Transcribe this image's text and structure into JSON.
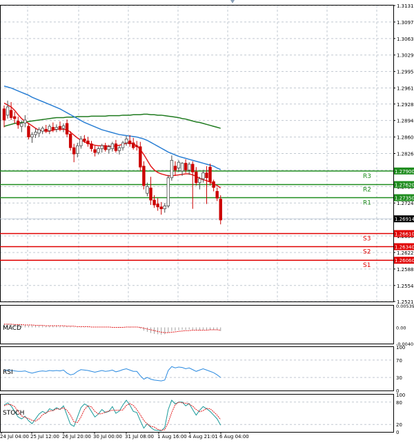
{
  "colors": {
    "grid": "#c0c8d0",
    "bull": "#4a4a4a",
    "bear": "#cc0000",
    "ma_fast": "#e31a1c",
    "ma_mid": "#2a7fd4",
    "ma_slow": "#1e7a1e",
    "resistance": "#1e8c1e",
    "support": "#e00000",
    "macd_signal": "#e31a1c",
    "rsi_line": "#2a8ae0",
    "stoch_main": "#1a9a9a",
    "stoch_signal": "#e31a1c"
  },
  "chart_data": [
    {
      "type": "candlestick",
      "price_axis_ticks": [
        "1.31310",
        "1.30970",
        "1.30630",
        "1.30290",
        "1.29950",
        "1.29610",
        "1.29280",
        "1.28940",
        "1.28600",
        "1.28260",
        "1.27920",
        "1.27580",
        "1.27240",
        "1.26900",
        "1.26560",
        "1.26220",
        "1.25880",
        "1.25540",
        "1.25210"
      ],
      "ylim": [
        1.2521,
        1.3131
      ],
      "time_axis_labels": [
        "24 Jul 04:00",
        "25 Jul 12:00",
        "26 Jul 20:00",
        "30 Jul 00:00",
        "31 Jul 08:00",
        "1 Aug 16:00",
        "4 Aug 21:01",
        "6 Aug 04:00"
      ],
      "candles": [
        [
          1.2918,
          1.2925,
          1.288,
          1.2895
        ],
        [
          1.2905,
          1.2935,
          1.2898,
          1.2922
        ],
        [
          1.2915,
          1.2932,
          1.2895,
          1.29
        ],
        [
          1.2902,
          1.2912,
          1.2888,
          1.2898
        ],
        [
          1.2893,
          1.2902,
          1.2877,
          1.2885
        ],
        [
          1.2882,
          1.2893,
          1.287,
          1.2888
        ],
        [
          1.2889,
          1.2905,
          1.288,
          1.2895
        ],
        [
          1.2882,
          1.2888,
          1.2855,
          1.286
        ],
        [
          1.286,
          1.287,
          1.2848,
          1.2865
        ],
        [
          1.2865,
          1.2878,
          1.2858,
          1.287
        ],
        [
          1.2868,
          1.288,
          1.286,
          1.2875
        ],
        [
          1.2872,
          1.2882,
          1.2866,
          1.2878
        ],
        [
          1.2876,
          1.2885,
          1.2868,
          1.2872
        ],
        [
          1.2873,
          1.2886,
          1.2866,
          1.2882
        ],
        [
          1.288,
          1.289,
          1.287,
          1.2875
        ],
        [
          1.2876,
          1.2886,
          1.287,
          1.288
        ],
        [
          1.2882,
          1.2892,
          1.2872,
          1.2876
        ],
        [
          1.2878,
          1.2888,
          1.287,
          1.2883
        ],
        [
          1.2888,
          1.2896,
          1.286,
          1.2866
        ],
        [
          1.2866,
          1.2872,
          1.2832,
          1.2838
        ],
        [
          1.2838,
          1.2846,
          1.2808,
          1.2825
        ],
        [
          1.2826,
          1.2848,
          1.2818,
          1.2842
        ],
        [
          1.2842,
          1.2862,
          1.2836,
          1.2856
        ],
        [
          1.2856,
          1.2864,
          1.2848,
          1.2852
        ],
        [
          1.2852,
          1.286,
          1.284,
          1.2846
        ],
        [
          1.2846,
          1.2852,
          1.283,
          1.2836
        ],
        [
          1.2834,
          1.2842,
          1.282,
          1.2828
        ],
        [
          1.2828,
          1.284,
          1.2824,
          1.2836
        ],
        [
          1.2836,
          1.2846,
          1.2828,
          1.2842
        ],
        [
          1.2842,
          1.2848,
          1.283,
          1.2834
        ],
        [
          1.2834,
          1.2844,
          1.2826,
          1.284
        ],
        [
          1.2836,
          1.285,
          1.283,
          1.2846
        ],
        [
          1.2846,
          1.2854,
          1.2828,
          1.2832
        ],
        [
          1.2832,
          1.2842,
          1.2824,
          1.2838
        ],
        [
          1.2838,
          1.2852,
          1.2832,
          1.2848
        ],
        [
          1.2848,
          1.2862,
          1.2842,
          1.2856
        ],
        [
          1.2852,
          1.2864,
          1.284,
          1.2846
        ],
        [
          1.2848,
          1.2858,
          1.2834,
          1.2838
        ],
        [
          1.2842,
          1.2852,
          1.2832,
          1.284
        ],
        [
          1.284,
          1.285,
          1.279,
          1.2798
        ],
        [
          1.28,
          1.281,
          1.2752,
          1.276
        ],
        [
          1.2744,
          1.2766,
          1.2738,
          1.2758
        ],
        [
          1.2755,
          1.2778,
          1.272,
          1.273
        ],
        [
          1.273,
          1.274,
          1.2714,
          1.272
        ],
        [
          1.2722,
          1.2734,
          1.2708,
          1.2716
        ],
        [
          1.2716,
          1.2726,
          1.27,
          1.2712
        ],
        [
          1.2712,
          1.2724,
          1.2704,
          1.2718
        ],
        [
          1.2718,
          1.2782,
          1.2714,
          1.2776
        ],
        [
          1.2776,
          1.2822,
          1.277,
          1.2812
        ],
        [
          1.28,
          1.281,
          1.278,
          1.2792
        ],
        [
          1.2796,
          1.2812,
          1.2788,
          1.2808
        ],
        [
          1.279,
          1.2808,
          1.278,
          1.2806
        ],
        [
          1.2806,
          1.2814,
          1.2786,
          1.2792
        ],
        [
          1.2792,
          1.2808,
          1.2782,
          1.2804
        ],
        [
          1.2804,
          1.281,
          1.2712,
          1.2788
        ],
        [
          1.2788,
          1.2798,
          1.276,
          1.2766
        ],
        [
          1.2766,
          1.2778,
          1.2752,
          1.2774
        ],
        [
          1.2774,
          1.2792,
          1.2766,
          1.2786
        ],
        [
          1.2786,
          1.28,
          1.2722,
          1.2776
        ],
        [
          1.2798,
          1.2805,
          1.276,
          1.2768
        ],
        [
          1.2768,
          1.2772,
          1.2748,
          1.2756
        ],
        [
          1.2748,
          1.2756,
          1.2728,
          1.2734
        ],
        [
          1.2732,
          1.274,
          1.268,
          1.2689
        ]
      ],
      "ma_fast": [
        1.293,
        1.2926,
        1.2922,
        1.2915,
        1.2906,
        1.2898,
        1.2892,
        1.2888,
        1.2883,
        1.2878,
        1.2874,
        1.2873,
        1.2872,
        1.2872,
        1.2874,
        1.2876,
        1.2876,
        1.2876,
        1.2875,
        1.287,
        1.2864,
        1.2858,
        1.2854,
        1.285,
        1.2847,
        1.2845,
        1.2843,
        1.2842,
        1.2842,
        1.2842,
        1.2841,
        1.2841,
        1.2842,
        1.2843,
        1.2845,
        1.2847,
        1.2848,
        1.2846,
        1.2842,
        1.2834,
        1.2824,
        1.2812,
        1.28,
        1.2792,
        1.2787,
        1.2784,
        1.2782,
        1.278,
        1.278,
        1.2781,
        1.2782,
        1.2783,
        1.2784,
        1.2784,
        1.2782,
        1.2779,
        1.2775,
        1.2772,
        1.277,
        1.2767,
        1.2763,
        1.276,
        1.2755
      ],
      "ma_mid": [
        1.2965,
        1.2963,
        1.2961,
        1.2958,
        1.2955,
        1.2952,
        1.2949,
        1.2946,
        1.2942,
        1.2939,
        1.2936,
        1.2933,
        1.293,
        1.2927,
        1.2924,
        1.2921,
        1.2918,
        1.2914,
        1.291,
        1.2906,
        1.2902,
        1.2898,
        1.2894,
        1.289,
        1.2887,
        1.2884,
        1.2881,
        1.2878,
        1.2875,
        1.2873,
        1.2871,
        1.2869,
        1.2867,
        1.2865,
        1.2864,
        1.2863,
        1.2862,
        1.2861,
        1.286,
        1.2858,
        1.2856,
        1.2853,
        1.2849,
        1.2845,
        1.2841,
        1.2837,
        1.2833,
        1.2829,
        1.2826,
        1.2823,
        1.282,
        1.2818,
        1.2816,
        1.2814,
        1.2812,
        1.281,
        1.2808,
        1.2806,
        1.2804,
        1.2802,
        1.28,
        1.2796,
        1.2793
      ],
      "ma_slow": [
        1.2882,
        1.2884,
        1.2886,
        1.2888,
        1.2889,
        1.289,
        1.2891,
        1.2892,
        1.2893,
        1.2894,
        1.2895,
        1.2896,
        1.2897,
        1.2898,
        1.2899,
        1.29,
        1.29,
        1.29,
        1.2901,
        1.2901,
        1.2901,
        1.2902,
        1.2902,
        1.2902,
        1.2902,
        1.2903,
        1.2903,
        1.2903,
        1.2903,
        1.2903,
        1.2904,
        1.2904,
        1.2904,
        1.2904,
        1.2905,
        1.2905,
        1.2905,
        1.2906,
        1.2906,
        1.2906,
        1.2907,
        1.2907,
        1.2906,
        1.2906,
        1.2905,
        1.2905,
        1.2904,
        1.2903,
        1.2902,
        1.2901,
        1.29,
        1.2898,
        1.2897,
        1.2895,
        1.2893,
        1.2891,
        1.289,
        1.2888,
        1.2886,
        1.2884,
        1.2882,
        1.288,
        1.2878
      ],
      "levels": [
        {
          "name": "R3",
          "value": 1.279,
          "label": "1.27900",
          "kind": "resistance"
        },
        {
          "name": "R2",
          "value": 1.2762,
          "label": "1.27620",
          "kind": "resistance"
        },
        {
          "name": "R1",
          "value": 1.2735,
          "label": "1.27350",
          "kind": "resistance"
        },
        {
          "name": "S3",
          "value": 1.2661,
          "label": "1.26610",
          "kind": "support"
        },
        {
          "name": "S2",
          "value": 1.2634,
          "label": "1.26340",
          "kind": "support"
        },
        {
          "name": "S1",
          "value": 1.2606,
          "label": "1.26060",
          "kind": "support"
        }
      ],
      "current_price": {
        "value": 1.26914,
        "label": "1.26914"
      }
    },
    {
      "type": "histogram",
      "title": "MACD",
      "axis_ticks": [
        "0.005392",
        "0.00",
        "-0.004015"
      ],
      "ylim": [
        -0.004015,
        0.005392
      ],
      "histogram": [
        0.0009,
        0.0009,
        0.0008,
        0.0008,
        0.0007,
        0.0006,
        0.0006,
        0.0005,
        0.0005,
        0.0005,
        0.0004,
        0.0004,
        0.0004,
        0.0004,
        0.0004,
        0.0004,
        0.0003,
        0.0003,
        0.0003,
        0.0002,
        0.0001,
        0.0001,
        0.0001,
        0.0001,
        0.0001,
        0.0,
        0.0,
        0.0,
        0.0,
        0.0,
        0.0,
        0.0,
        0.0,
        0.0001,
        0.0001,
        0.0001,
        0.0001,
        0.0001,
        0.0,
        -0.0003,
        -0.0008,
        -0.0011,
        -0.0014,
        -0.0016,
        -0.0017,
        -0.0018,
        -0.0017,
        -0.0013,
        -0.0009,
        -0.0008,
        -0.0007,
        -0.0006,
        -0.0006,
        -0.0005,
        -0.0006,
        -0.0007,
        -0.0007,
        -0.0006,
        -0.0006,
        -0.0006,
        -0.0006,
        -0.0007,
        -0.0009
      ],
      "signal": [
        0.0008,
        0.0008,
        0.0008,
        0.0007,
        0.0007,
        0.0007,
        0.0006,
        0.0006,
        0.0006,
        0.0005,
        0.0005,
        0.0005,
        0.0004,
        0.0004,
        0.0004,
        0.0004,
        0.0004,
        0.0004,
        0.0003,
        0.0003,
        0.0003,
        0.0002,
        0.0002,
        0.0002,
        0.0002,
        0.0001,
        0.0001,
        0.0001,
        0.0001,
        0.0001,
        0.0001,
        0.0,
        0.0,
        0.0,
        0.0,
        0.0001,
        0.0001,
        0.0001,
        0.0001,
        0.0,
        -0.0002,
        -0.0004,
        -0.0006,
        -0.0008,
        -0.001,
        -0.0012,
        -0.0013,
        -0.0013,
        -0.0012,
        -0.0011,
        -0.001,
        -0.0009,
        -0.0008,
        -0.0008,
        -0.0007,
        -0.0007,
        -0.0007,
        -0.0007,
        -0.0007,
        -0.0006,
        -0.0006,
        -0.0006,
        -0.0007
      ]
    },
    {
      "type": "line",
      "title": "RSI",
      "axis_ticks": [
        "100",
        "70",
        "30",
        "0"
      ],
      "ylim": [
        0,
        100
      ],
      "values": [
        46,
        47,
        46,
        45,
        44,
        44,
        45,
        42,
        40,
        42,
        44,
        45,
        44,
        46,
        45,
        46,
        45,
        47,
        40,
        36,
        38,
        44,
        48,
        47,
        46,
        44,
        42,
        44,
        46,
        44,
        45,
        47,
        43,
        45,
        48,
        50,
        47,
        44,
        44,
        34,
        26,
        30,
        26,
        24,
        23,
        22,
        24,
        46,
        55,
        52,
        54,
        53,
        50,
        52,
        48,
        44,
        47,
        50,
        47,
        44,
        41,
        36,
        30
      ]
    },
    {
      "type": "line",
      "title": "STOCH",
      "axis_ticks": [
        "100",
        "80",
        "20",
        "0"
      ],
      "ylim": [
        0,
        100
      ],
      "main": [
        72,
        78,
        70,
        55,
        40,
        35,
        42,
        30,
        22,
        35,
        48,
        55,
        50,
        62,
        58,
        65,
        60,
        70,
        45,
        20,
        15,
        40,
        65,
        75,
        70,
        55,
        40,
        48,
        60,
        52,
        55,
        68,
        50,
        56,
        72,
        85,
        72,
        55,
        52,
        30,
        10,
        22,
        12,
        5,
        4,
        3,
        12,
        60,
        85,
        75,
        80,
        80,
        70,
        76,
        60,
        45,
        58,
        68,
        62,
        55,
        45,
        35,
        18
      ],
      "signal": [
        70,
        74,
        73,
        68,
        55,
        43,
        39,
        36,
        31,
        29,
        35,
        46,
        51,
        56,
        57,
        62,
        61,
        65,
        58,
        45,
        27,
        25,
        40,
        60,
        70,
        67,
        55,
        48,
        49,
        53,
        56,
        58,
        58,
        58,
        59,
        71,
        76,
        71,
        60,
        46,
        31,
        21,
        15,
        13,
        7,
        4,
        6,
        25,
        52,
        73,
        80,
        78,
        77,
        75,
        69,
        60,
        54,
        57,
        63,
        62,
        54,
        45,
        33
      ]
    }
  ]
}
